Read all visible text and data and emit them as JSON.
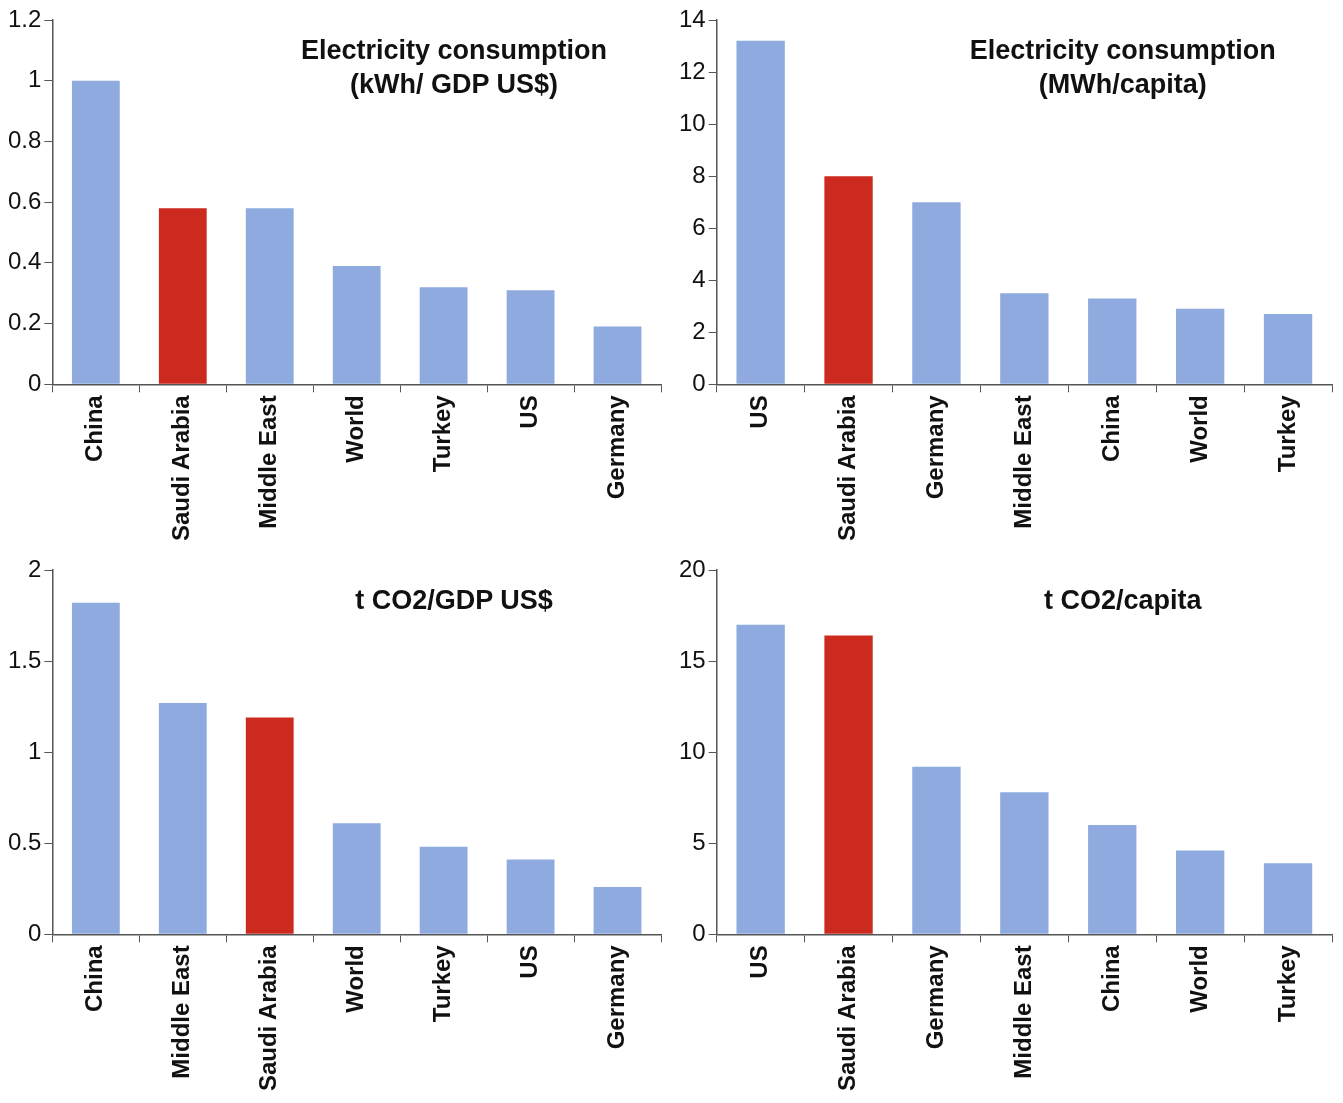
{
  "chart_data": [
    {
      "type": "bar",
      "title": "Electricity consumption\n(kWh/ GDP US$)",
      "categories": [
        "China",
        "Saudi Arabia",
        "Middle East",
        "World",
        "Turkey",
        "US",
        "Germany"
      ],
      "values": [
        1.0,
        0.58,
        0.58,
        0.39,
        0.32,
        0.31,
        0.19
      ],
      "colors": [
        "#8eaadf",
        "#cc2a1e",
        "#8eaadf",
        "#8eaadf",
        "#8eaadf",
        "#8eaadf",
        "#8eaadf"
      ],
      "ylim": [
        0,
        1.2
      ],
      "yticks": [
        0,
        0.2,
        0.4,
        0.6,
        0.8,
        1,
        1.2
      ]
    },
    {
      "type": "bar",
      "title": "Electricity consumption\n(MWh/capita)",
      "categories": [
        "US",
        "Saudi Arabia",
        "Germany",
        "Middle East",
        "China",
        "World",
        "Turkey"
      ],
      "values": [
        13.2,
        8.0,
        7.0,
        3.5,
        3.3,
        2.9,
        2.7
      ],
      "colors": [
        "#8eaadf",
        "#cc2a1e",
        "#8eaadf",
        "#8eaadf",
        "#8eaadf",
        "#8eaadf",
        "#8eaadf"
      ],
      "ylim": [
        0,
        14
      ],
      "yticks": [
        0,
        2,
        4,
        6,
        8,
        10,
        12,
        14
      ]
    },
    {
      "type": "bar",
      "title": "t CO2/GDP US$",
      "categories": [
        "China",
        "Middle East",
        "Saudi Arabia",
        "World",
        "Turkey",
        "US",
        "Germany"
      ],
      "values": [
        1.82,
        1.27,
        1.19,
        0.61,
        0.48,
        0.41,
        0.26
      ],
      "colors": [
        "#8eaadf",
        "#8eaadf",
        "#cc2a1e",
        "#8eaadf",
        "#8eaadf",
        "#8eaadf",
        "#8eaadf"
      ],
      "ylim": [
        0,
        2
      ],
      "yticks": [
        0,
        0.5,
        1,
        1.5,
        2
      ]
    },
    {
      "type": "bar",
      "title": "t CO2/capita",
      "categories": [
        "US",
        "Saudi Arabia",
        "Germany",
        "Middle East",
        "China",
        "World",
        "Turkey"
      ],
      "values": [
        17.0,
        16.4,
        9.2,
        7.8,
        6.0,
        4.6,
        3.9
      ],
      "colors": [
        "#8eaadf",
        "#cc2a1e",
        "#8eaadf",
        "#8eaadf",
        "#8eaadf",
        "#8eaadf",
        "#8eaadf"
      ],
      "ylim": [
        0,
        20
      ],
      "yticks": [
        0,
        5,
        10,
        15,
        20
      ]
    }
  ]
}
